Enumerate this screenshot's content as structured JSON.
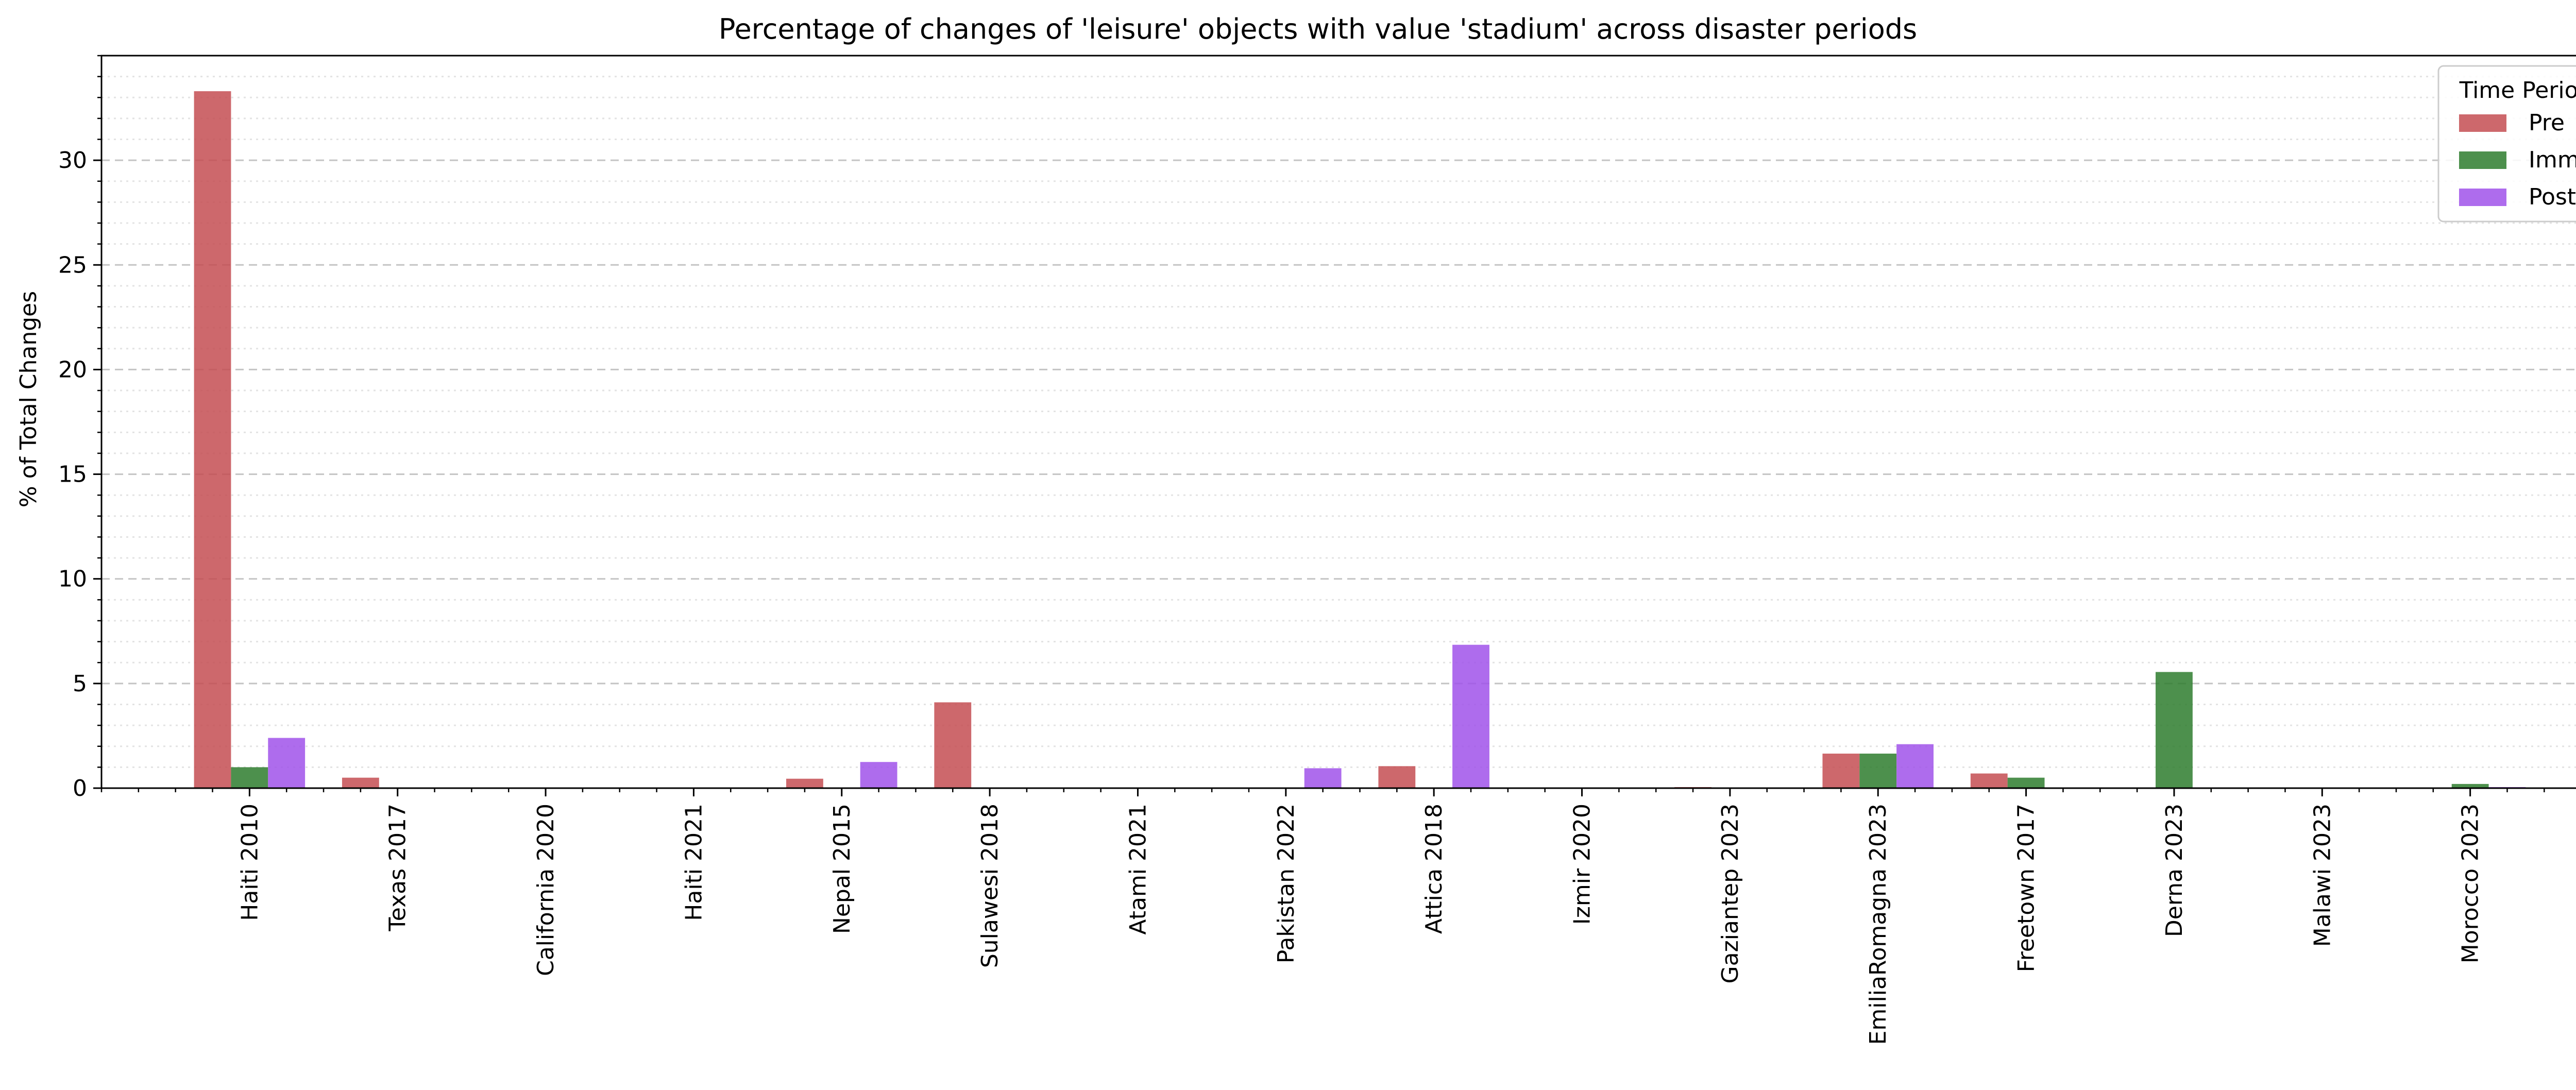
{
  "chart_data": {
    "type": "bar",
    "title": "Percentage of changes of 'leisure' objects with value 'stadium' across disaster periods",
    "ylabel": "% of Total Changes",
    "xlabel": "",
    "ylim": [
      0,
      35
    ],
    "yticks": [
      0,
      5,
      10,
      15,
      20,
      25,
      30
    ],
    "grid": true,
    "legend_title": "Time Period",
    "legend_position": "top-right",
    "categories": [
      "Haiti 2010",
      "Texas 2017",
      "California 2020",
      "Haiti 2021",
      "Nepal 2015",
      "Sulawesi 2018",
      "Atami 2021",
      "Pakistan 2022",
      "Attica 2018",
      "Izmir 2020",
      "Gaziantep 2023",
      "EmiliaRomagna 2023",
      "Freetown 2017",
      "Derna 2023",
      "Malawi 2023",
      "Morocco 2023"
    ],
    "series": [
      {
        "name": "Pre",
        "color": "#c44e52",
        "values": [
          33.3,
          0.5,
          0,
          0,
          0.45,
          4.1,
          0,
          0,
          1.05,
          0,
          0.05,
          1.65,
          0.7,
          0,
          0,
          0
        ]
      },
      {
        "name": "Imm",
        "color": "#2e7d2e",
        "values": [
          1.0,
          0,
          0,
          0,
          0,
          0,
          0,
          0,
          0,
          0,
          0,
          1.65,
          0.5,
          5.55,
          0,
          0.2
        ]
      },
      {
        "name": "Post",
        "color": "#a052ea",
        "values": [
          2.4,
          0,
          0,
          0,
          1.25,
          0,
          0,
          0.95,
          6.85,
          0,
          0,
          2.1,
          0,
          0,
          0,
          0.05
        ]
      }
    ]
  }
}
